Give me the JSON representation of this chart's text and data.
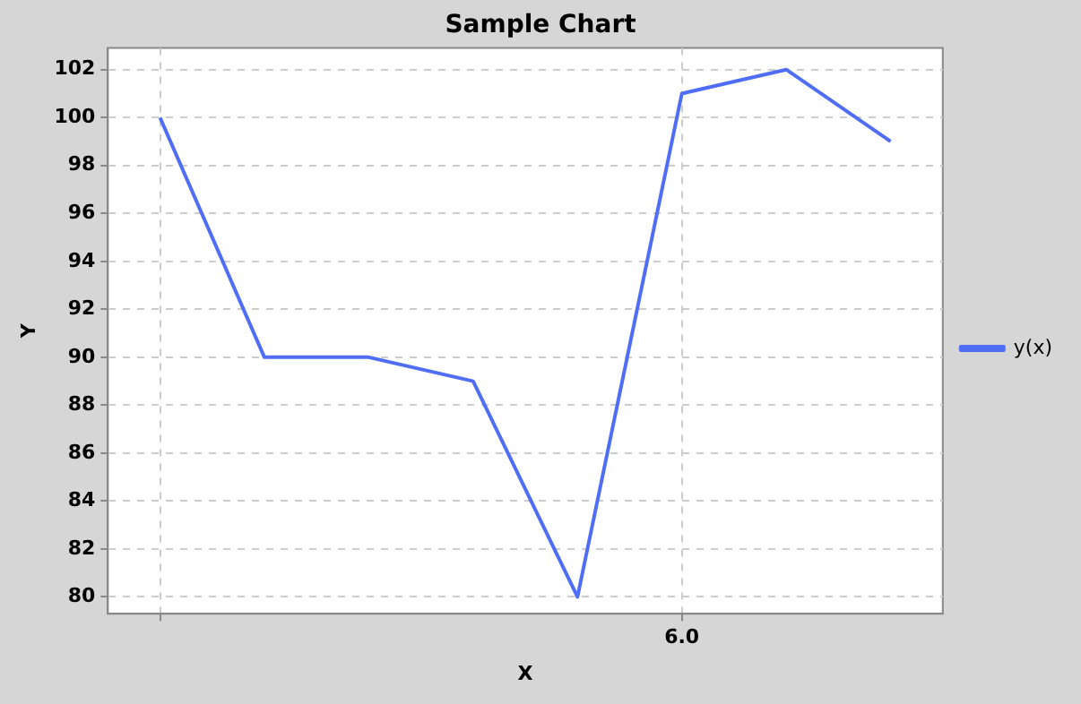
{
  "chart_data": {
    "type": "line",
    "title": "Sample Chart",
    "xlabel": "X",
    "ylabel": "Y",
    "categories": [
      null,
      null,
      null,
      null,
      null,
      "6.0",
      null,
      null
    ],
    "series": [
      {
        "name": "y(x)",
        "color": "#4f6ef5",
        "values": [
          100,
          90,
          90,
          89,
          80,
          101,
          102,
          99
        ]
      }
    ],
    "ylim": [
      79.3,
      102.9
    ],
    "yticks": [
      80,
      82,
      84,
      86,
      88,
      90,
      92,
      94,
      96,
      98,
      100,
      102
    ],
    "grid": true,
    "legend": "right",
    "marker": "none",
    "line_style": "solid"
  }
}
